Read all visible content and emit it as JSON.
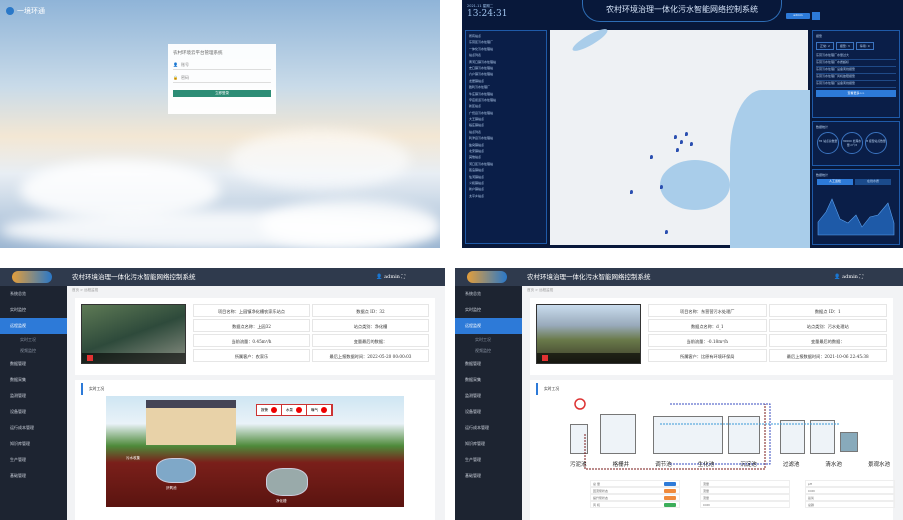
{
  "login_screen": {
    "logo_text": "一境环通",
    "form_title": "农村环境云平台管理系统",
    "username_placeholder": "账号",
    "password_placeholder": "密码",
    "login_button": "立即登录"
  },
  "dashboard": {
    "date": "2021-11 星期二",
    "time": "13:24:31",
    "title": "农村环境治理一体化污水智能网络控制系统",
    "user_label": "admin",
    "tree_items": [
      "所有站点",
      "东营区污水处理厂",
      "一体化污水处理站",
      "站点列表",
      "黄河口镇污水处理站",
      "史口镇污水处理站",
      "六户镇污水处理站",
      "龙居镇站点",
      "胜利污水处理厂",
      "牛庄镇污水处理站",
      "辛店街道污水处理站",
      "新区站点",
      "广饶县污水处理站",
      "大王镇站点",
      "稻庄镇站点",
      "站点列表",
      "利津县污水处理站",
      "盐窝镇站点",
      "北宋镇站点",
      "其他站点",
      "河口区污水处理站",
      "孤岛镇站点",
      "仙河镇站点",
      "义和镇站点",
      "新户镇站点",
      "太平乡站点"
    ],
    "alarm_panel": {
      "title": "报警",
      "chips": [
        "正常: 2",
        "报警: 3",
        "停用: 0"
      ],
      "messages": [
        "东营污水处理厂水量过大",
        "东营污水处理厂水质超标",
        "东营污水处理厂设备离线报警",
        "东营污水处理厂风机故障报警",
        "东营污水处理厂设备离线报警"
      ],
      "more_button": "查看更多>>"
    },
    "stats_panel": {
      "title": "数据统计",
      "items": [
        "35 站点总数量",
        "30000 处理水量 m³/d",
        "8 报警站点数量"
      ]
    },
    "chart_panel": {
      "title": "数据统计",
      "tabs": [
        "人工巡检",
        "在线水质"
      ]
    }
  },
  "monitor_app": {
    "title": "农村环境治理一体化污水智能网络控制系统",
    "user": "admin",
    "breadcrumb": "首页 > 远程监视",
    "sidebar": [
      "系统总览",
      "实时监控",
      "远程监视",
      "实时工况",
      "视频监控",
      "数据管理",
      "数据采集",
      "监测管理",
      "设备管理",
      "运行成本管理",
      "知识库管理",
      "生产管理",
      "基础管理"
    ],
    "section_title": "实时工况"
  },
  "station_1": {
    "info": [
      "项目名称：上园镇净化槽农家乐站点",
      "数据点 ID：32",
      "数据点名称：上园32",
      "站点类别：净化槽",
      "当前流量：0.45m³/h",
      "变量最后的数据：",
      "所属客户：农家乐",
      "最后上报数据时间：2022-05-20 00:00:03"
    ],
    "alarms": [
      "报警",
      "水泵",
      "曝气"
    ],
    "scene_labels": [
      "污水收集",
      "厌氧池",
      "净化槽"
    ]
  },
  "station_2": {
    "info": [
      "项目名称：东营营污水处理厂",
      "数据点 ID：1",
      "数据点名称：d_1",
      "站点类别：污水处理站",
      "当前流量：-0.18m³/h",
      "变量最后的数据：",
      "所属客户：比原有环境环保局",
      "最后上报数据时间：2021-10-06 22:45:38"
    ],
    "process_labels": [
      "污泥池",
      "格栅井",
      "调节池",
      "生化池",
      "沉淀池",
      "过滤池",
      "清水池",
      "景观水池"
    ],
    "table_rows": [
      "总 量",
      "回流泵状态",
      "提升泵状态",
      "风 机"
    ]
  }
}
